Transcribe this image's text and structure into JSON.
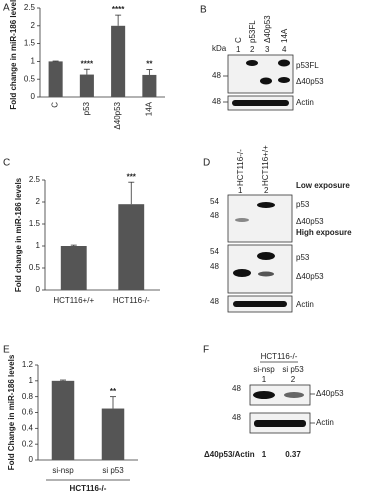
{
  "chart_data": [
    {
      "type": "bar",
      "panel": "A",
      "y_label": "Fold change in miR-186 levels",
      "categories": [
        "C",
        "p53",
        "Δ40p53",
        "14A"
      ],
      "values": [
        1,
        0.63,
        2.0,
        0.62
      ],
      "errors": [
        0.01,
        0.15,
        0.3,
        0.15
      ],
      "annotations": [
        null,
        "****",
        "****",
        "**"
      ],
      "color": "#555555",
      "rotate_labels": true,
      "ylim": [
        0,
        2.5
      ],
      "yticks": [
        0,
        0.5,
        1,
        1.5,
        2,
        2.5
      ]
    },
    {
      "type": "bar",
      "panel": "C",
      "y_label": "Fold change in miR-186 levels",
      "categories": [
        "HCT116+/+",
        "HCT116-/-"
      ],
      "values": [
        1,
        1.95
      ],
      "errors": [
        0.02,
        0.5
      ],
      "annotations": [
        null,
        "***"
      ],
      "color": "#555555",
      "rotate_labels": false,
      "ylim": [
        0,
        2.5
      ],
      "yticks": [
        0,
        0.5,
        1,
        1.5,
        2,
        2.5
      ]
    },
    {
      "type": "bar",
      "panel": "E",
      "y_label": "Fold Change in miR-186 levels",
      "x_label": "HCT116-/-",
      "categories": [
        "si-nsp",
        "si p53"
      ],
      "values": [
        1,
        0.65
      ],
      "errors": [
        0.01,
        0.15
      ],
      "annotations": [
        null,
        "**"
      ],
      "color": "#555555",
      "rotate_labels": false,
      "ylim": [
        0,
        1.2
      ],
      "yticks": [
        0,
        0.2,
        0.4,
        0.6,
        0.8,
        1,
        1.2
      ]
    }
  ],
  "blot_b": {
    "panel": "B",
    "kda": "kDa",
    "lanes": [
      "C",
      "p53FL",
      "Δ40p53",
      "14A"
    ],
    "lane_numbers": [
      "1",
      "2",
      "3",
      "4"
    ],
    "markers": [
      "48",
      "48"
    ],
    "bands": [
      "p53FL",
      "Δ40p53",
      "Actin"
    ]
  },
  "blot_d": {
    "panel": "D",
    "lanes": [
      "HCT116-/-",
      "HCT116+/+"
    ],
    "lane_numbers": [
      "1",
      "2"
    ],
    "exposures": [
      "Low exposure",
      "High exposure"
    ],
    "markers": [
      "54",
      "48",
      "54",
      "48",
      "48"
    ],
    "bands": [
      "p53",
      "Δ40p53",
      "p53",
      "Δ40p53",
      "Actin"
    ]
  },
  "blot_f": {
    "panel": "F",
    "group": "HCT116-/-",
    "lanes": [
      "si-nsp",
      "si p53"
    ],
    "lane_numbers": [
      "1",
      "2"
    ],
    "markers": [
      "48",
      "48"
    ],
    "bands": [
      "Δ40p53",
      "Actin"
    ],
    "ratio_label": "Δ40p53/Actin",
    "ratios": [
      "1",
      "0.37"
    ]
  }
}
